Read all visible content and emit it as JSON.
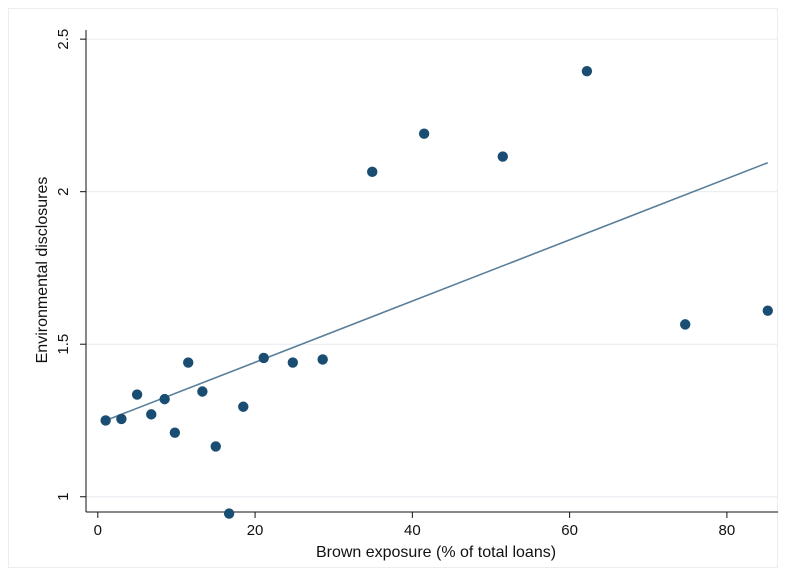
{
  "chart_data": {
    "type": "scatter",
    "title": "",
    "xlabel": "Brown exposure (% of total loans)",
    "ylabel": "Environmental disclosures",
    "xlim": [
      -1.5,
      86.5
    ],
    "ylim": [
      0.95,
      2.53
    ],
    "xticks": [
      0,
      20,
      40,
      60,
      80
    ],
    "yticks": [
      1,
      1.5,
      2,
      2.5
    ],
    "ytick_labels": [
      "1",
      "1.5",
      "2",
      "2.5"
    ],
    "grid": "horizontal",
    "legend": "none",
    "series": [
      {
        "kind": "points",
        "color": "#1a4d72",
        "points": [
          {
            "x": 1.0,
            "y": 1.25
          },
          {
            "x": 3.0,
            "y": 1.255
          },
          {
            "x": 5.0,
            "y": 1.335
          },
          {
            "x": 6.8,
            "y": 1.27
          },
          {
            "x": 8.5,
            "y": 1.32
          },
          {
            "x": 9.8,
            "y": 1.21
          },
          {
            "x": 11.5,
            "y": 1.44
          },
          {
            "x": 13.3,
            "y": 1.345
          },
          {
            "x": 15.0,
            "y": 1.165
          },
          {
            "x": 16.7,
            "y": 0.945
          },
          {
            "x": 18.5,
            "y": 1.295
          },
          {
            "x": 21.1,
            "y": 1.455
          },
          {
            "x": 24.8,
            "y": 1.44
          },
          {
            "x": 28.6,
            "y": 1.45
          },
          {
            "x": 34.9,
            "y": 2.065
          },
          {
            "x": 41.5,
            "y": 2.19
          },
          {
            "x": 51.5,
            "y": 2.115
          },
          {
            "x": 62.2,
            "y": 2.395
          },
          {
            "x": 74.7,
            "y": 1.565
          },
          {
            "x": 85.2,
            "y": 1.61
          }
        ]
      },
      {
        "kind": "fit-line",
        "color": "#5a7f9a",
        "x": [
          1.0,
          85.2
        ],
        "y": [
          1.25,
          2.095
        ]
      }
    ]
  }
}
